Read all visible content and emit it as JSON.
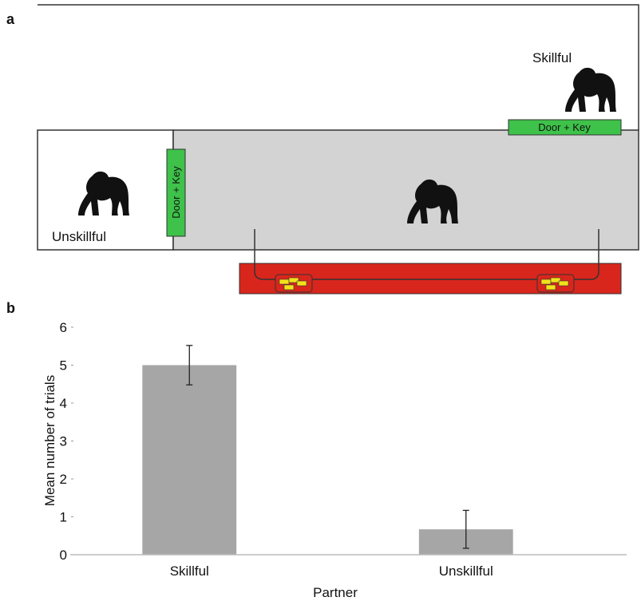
{
  "panels": {
    "a": "a",
    "b": "b"
  },
  "diagram": {
    "skillful": "Skillful",
    "unskillful": "Unskillful",
    "door_top": "Door + Key",
    "door_side": "Door + Key"
  },
  "chart_data": {
    "type": "bar",
    "categories": [
      "Skillful",
      "Unskillful"
    ],
    "values": [
      5,
      0.67
    ],
    "errors": [
      0.52,
      0.5
    ],
    "color": "#a6a6a6",
    "ylabel": "Mean number of trials",
    "xlabel": "Partner",
    "ylim": [
      0,
      6
    ],
    "yticks": [
      0,
      1,
      2,
      3,
      4,
      5,
      6
    ]
  }
}
